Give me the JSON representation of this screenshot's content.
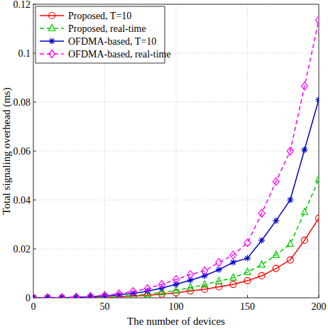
{
  "chart_data": {
    "type": "line",
    "x_label": "The number of devices",
    "y_label": "Total signaling overhead (ms)",
    "x": [
      0,
      10,
      20,
      30,
      40,
      50,
      60,
      70,
      80,
      90,
      100,
      110,
      120,
      130,
      140,
      150,
      160,
      170,
      180,
      190,
      200
    ],
    "xlim": [
      0,
      200
    ],
    "xticks": [
      0,
      50,
      100,
      150,
      200
    ],
    "ylim": [
      0,
      0.12
    ],
    "yticks": [
      0,
      0.02,
      0.04,
      0.06,
      0.08,
      0.1,
      0.12
    ],
    "grid": true,
    "legend": "top-left",
    "series": [
      {
        "name": "Proposed, T=10",
        "color": "#ff0000",
        "marker": "circle",
        "line_style": "solid",
        "values": [
          0,
          0,
          0,
          0,
          0.0001,
          0.0002,
          0.0004,
          0.0007,
          0.001,
          0.0015,
          0.002,
          0.0028,
          0.0035,
          0.0045,
          0.0055,
          0.007,
          0.009,
          0.012,
          0.0155,
          0.0235,
          0.0325
        ]
      },
      {
        "name": "Proposed, real-time",
        "color": "#00cc00",
        "marker": "triangle",
        "line_style": "dashed",
        "values": [
          0,
          0,
          0,
          0,
          0.0002,
          0.0003,
          0.0006,
          0.001,
          0.0015,
          0.0022,
          0.003,
          0.0042,
          0.0053,
          0.0068,
          0.0082,
          0.0105,
          0.0135,
          0.0175,
          0.022,
          0.035,
          0.0485
        ]
      },
      {
        "name": "OFDMA-based, T=10",
        "color": "#0000cc",
        "marker": "star",
        "line_style": "solid",
        "values": [
          0,
          0,
          0,
          0.0002,
          0.0004,
          0.0007,
          0.0012,
          0.0018,
          0.0027,
          0.004,
          0.0055,
          0.0072,
          0.009,
          0.0115,
          0.0145,
          0.0162,
          0.0235,
          0.0315,
          0.04,
          0.0605,
          0.081
        ]
      },
      {
        "name": "OFDMA-based, real-time",
        "color": "#ff00ff",
        "marker": "diamond",
        "line_style": "dashed",
        "values": [
          0,
          0,
          0.0001,
          0.0003,
          0.0006,
          0.001,
          0.0017,
          0.0026,
          0.0038,
          0.0055,
          0.0075,
          0.0095,
          0.011,
          0.0145,
          0.0175,
          0.0225,
          0.0345,
          0.0475,
          0.06,
          0.0865,
          0.1135
        ]
      }
    ]
  }
}
